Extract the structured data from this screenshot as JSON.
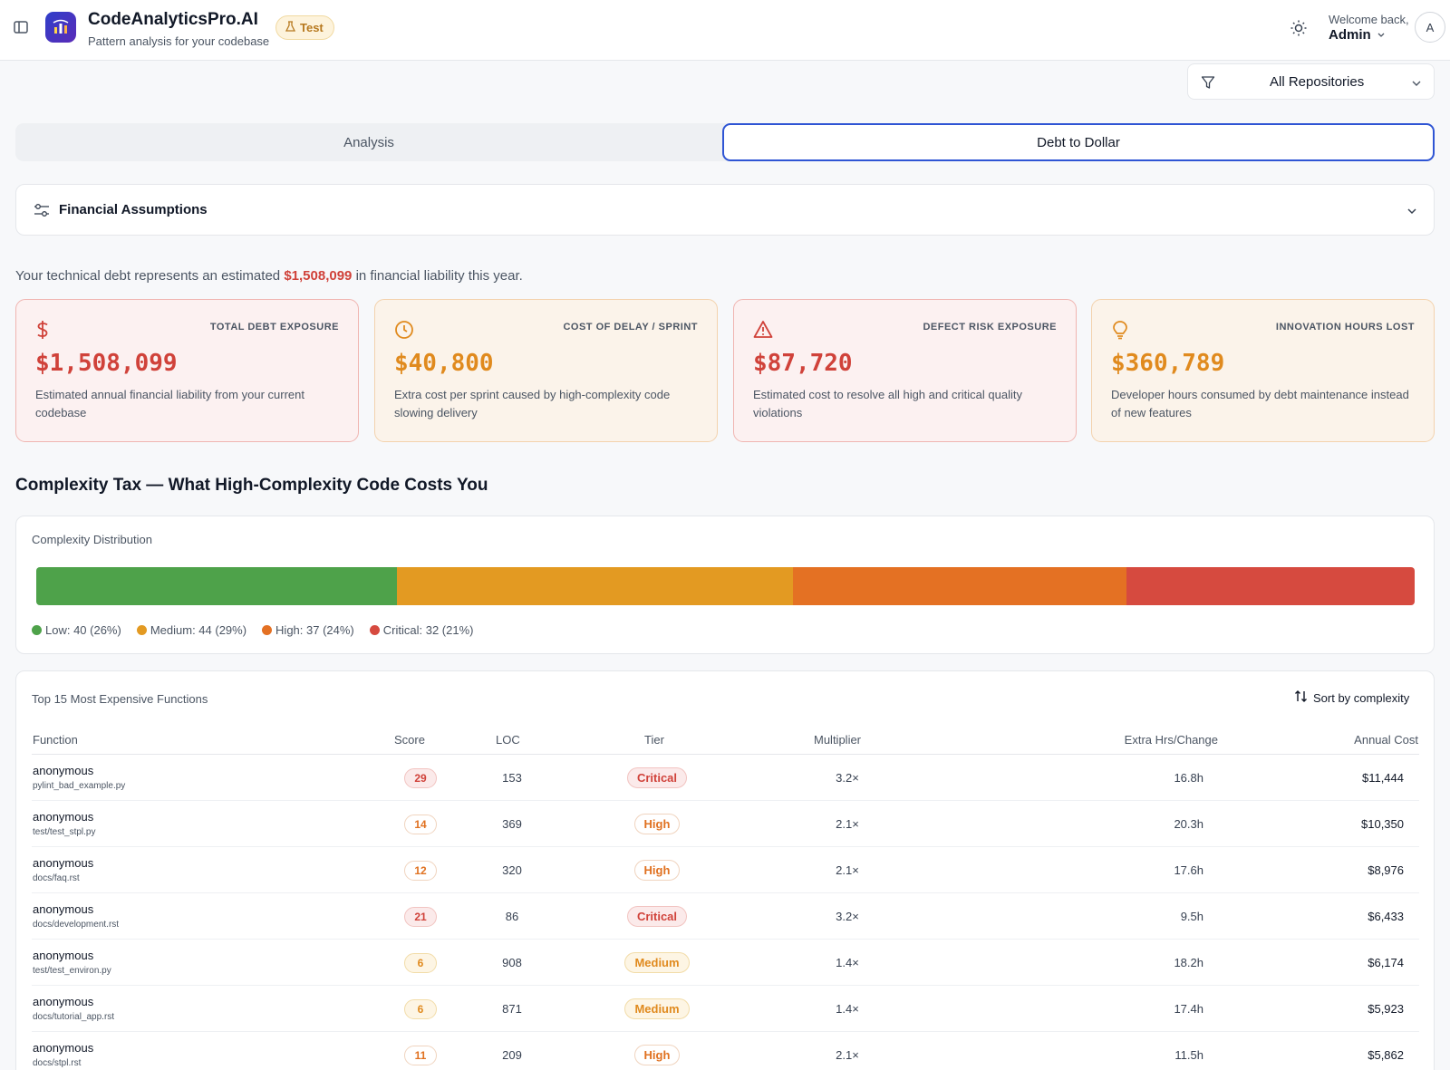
{
  "header": {
    "app_title": "CodeAnalyticsPro.AI",
    "app_subtitle": "Pattern analysis for your codebase",
    "badge": "Test",
    "welcome": "Welcome back,",
    "user": "Admin",
    "avatar_initial": "A"
  },
  "filter": {
    "repo_label": "All Repositories"
  },
  "tabs": [
    {
      "label": "Analysis",
      "active": false
    },
    {
      "label": "Debt to Dollar",
      "active": true
    }
  ],
  "assumptions": {
    "title": "Financial Assumptions"
  },
  "summary": {
    "prefix": "Your technical debt represents an estimated",
    "amount": "$1,508,099",
    "suffix": "in financial liability this year."
  },
  "kpis": [
    {
      "label": "TOTAL DEBT EXPOSURE",
      "value": "$1,508,099",
      "desc": "Estimated annual financial liability from your current codebase",
      "icon": "dollar-icon",
      "color": "#d0423a"
    },
    {
      "label": "COST OF DELAY / SPRINT",
      "value": "$40,800",
      "desc": "Extra cost per sprint caused by high-complexity code slowing delivery",
      "icon": "clock-icon",
      "color": "#e08a1e"
    },
    {
      "label": "DEFECT RISK EXPOSURE",
      "value": "$87,720",
      "desc": "Estimated cost to resolve all high and critical quality violations",
      "icon": "warning-icon",
      "color": "#d0423a"
    },
    {
      "label": "INNOVATION HOURS LOST",
      "value": "$360,789",
      "desc": "Developer hours consumed by debt maintenance instead of new features",
      "icon": "lightbulb-icon",
      "color": "#e08a1e"
    }
  ],
  "complexity": {
    "section_title": "Complexity Tax — What High-Complexity Code Costs You",
    "dist_title": "Complexity Distribution",
    "segments": [
      {
        "name": "Low",
        "count": 40,
        "percent": 26,
        "label": "Low: 40 (26%)",
        "color": "#4ea24a"
      },
      {
        "name": "Medium",
        "count": 44,
        "percent": 29,
        "label": "Medium: 44 (29%)",
        "color": "#e39a22"
      },
      {
        "name": "High",
        "count": 37,
        "percent": 24,
        "label": "High: 37 (24%)",
        "color": "#e47123"
      },
      {
        "name": "Critical",
        "count": 32,
        "percent": 21,
        "label": "Critical: 32 (21%)",
        "color": "#d64a3f"
      }
    ]
  },
  "table": {
    "title": "Top 15 Most Expensive Functions",
    "sort_label": "Sort by complexity",
    "columns": [
      "Function",
      "Score",
      "LOC",
      "Tier",
      "Multiplier",
      "Extra Hrs/Change",
      "Annual Cost"
    ],
    "rows": [
      {
        "name": "anonymous",
        "path": "pylint_bad_example.py",
        "score": "29",
        "loc": "153",
        "tier": "Critical",
        "mult": "3.2×",
        "hrs": "16.8h",
        "cost": "$11,444"
      },
      {
        "name": "anonymous",
        "path": "test/test_stpl.py",
        "score": "14",
        "loc": "369",
        "tier": "High",
        "mult": "2.1×",
        "hrs": "20.3h",
        "cost": "$10,350"
      },
      {
        "name": "anonymous",
        "path": "docs/faq.rst",
        "score": "12",
        "loc": "320",
        "tier": "High",
        "mult": "2.1×",
        "hrs": "17.6h",
        "cost": "$8,976"
      },
      {
        "name": "anonymous",
        "path": "docs/development.rst",
        "score": "21",
        "loc": "86",
        "tier": "Critical",
        "mult": "3.2×",
        "hrs": "9.5h",
        "cost": "$6,433"
      },
      {
        "name": "anonymous",
        "path": "test/test_environ.py",
        "score": "6",
        "loc": "908",
        "tier": "Medium",
        "mult": "1.4×",
        "hrs": "18.2h",
        "cost": "$6,174"
      },
      {
        "name": "anonymous",
        "path": "docs/tutorial_app.rst",
        "score": "6",
        "loc": "871",
        "tier": "Medium",
        "mult": "1.4×",
        "hrs": "17.4h",
        "cost": "$5,923"
      },
      {
        "name": "anonymous",
        "path": "docs/stpl.rst",
        "score": "11",
        "loc": "209",
        "tier": "High",
        "mult": "2.1×",
        "hrs": "11.5h",
        "cost": "$5,862"
      }
    ]
  }
}
